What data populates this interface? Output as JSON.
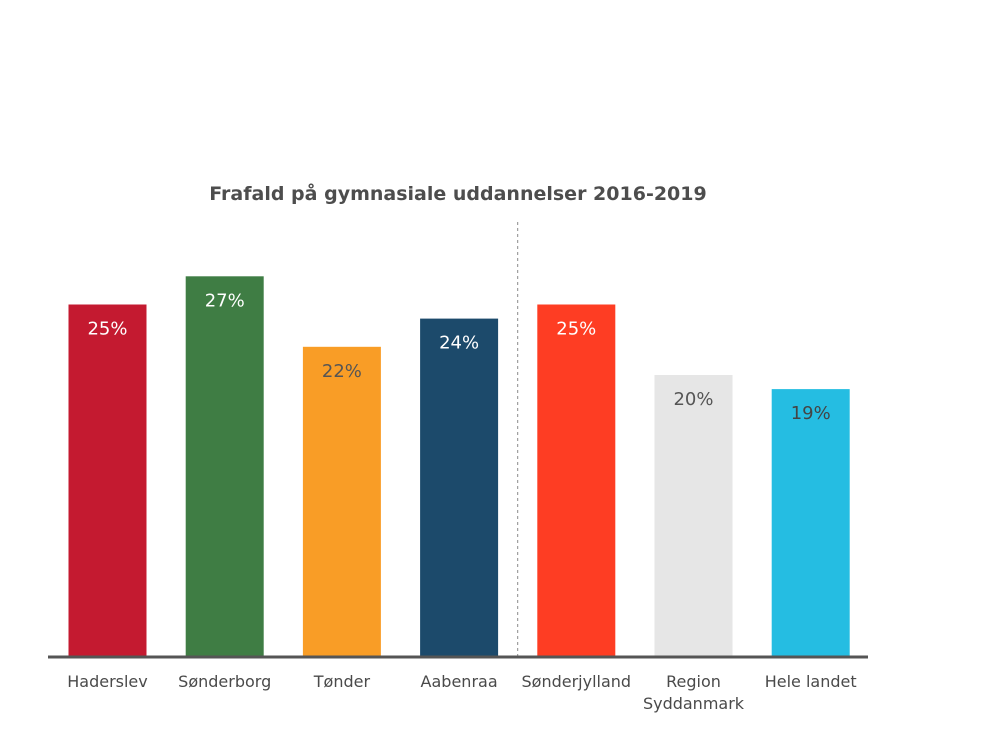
{
  "chart_data": {
    "type": "bar",
    "title": "Frafald på gymnasiale uddannelser 2016-2019",
    "xlabel": "",
    "ylabel": "",
    "ylim": [
      0,
      30
    ],
    "grid": false,
    "categories": [
      [
        "Haderslev"
      ],
      [
        "Sønderborg"
      ],
      [
        "Tønder"
      ],
      [
        "Aabenraa"
      ],
      [
        "Sønderjylland"
      ],
      [
        "Region",
        "Syddanmark"
      ],
      [
        "Hele landet"
      ]
    ],
    "values": [
      25,
      27,
      22,
      24,
      25,
      20,
      19
    ],
    "value_labels": [
      "25%",
      "27%",
      "22%",
      "24%",
      "25%",
      "20%",
      "19%"
    ],
    "colors": [
      "#c41a30",
      "#3f7d44",
      "#f99d26",
      "#1c4a6b",
      "#fe3d23",
      "#e6e6e6",
      "#25bde2"
    ],
    "label_colors": [
      "#ffffff",
      "#ffffff",
      "#555555",
      "#ffffff",
      "#ffffff",
      "#555555",
      "#444444"
    ],
    "separator_after_index": 3
  }
}
